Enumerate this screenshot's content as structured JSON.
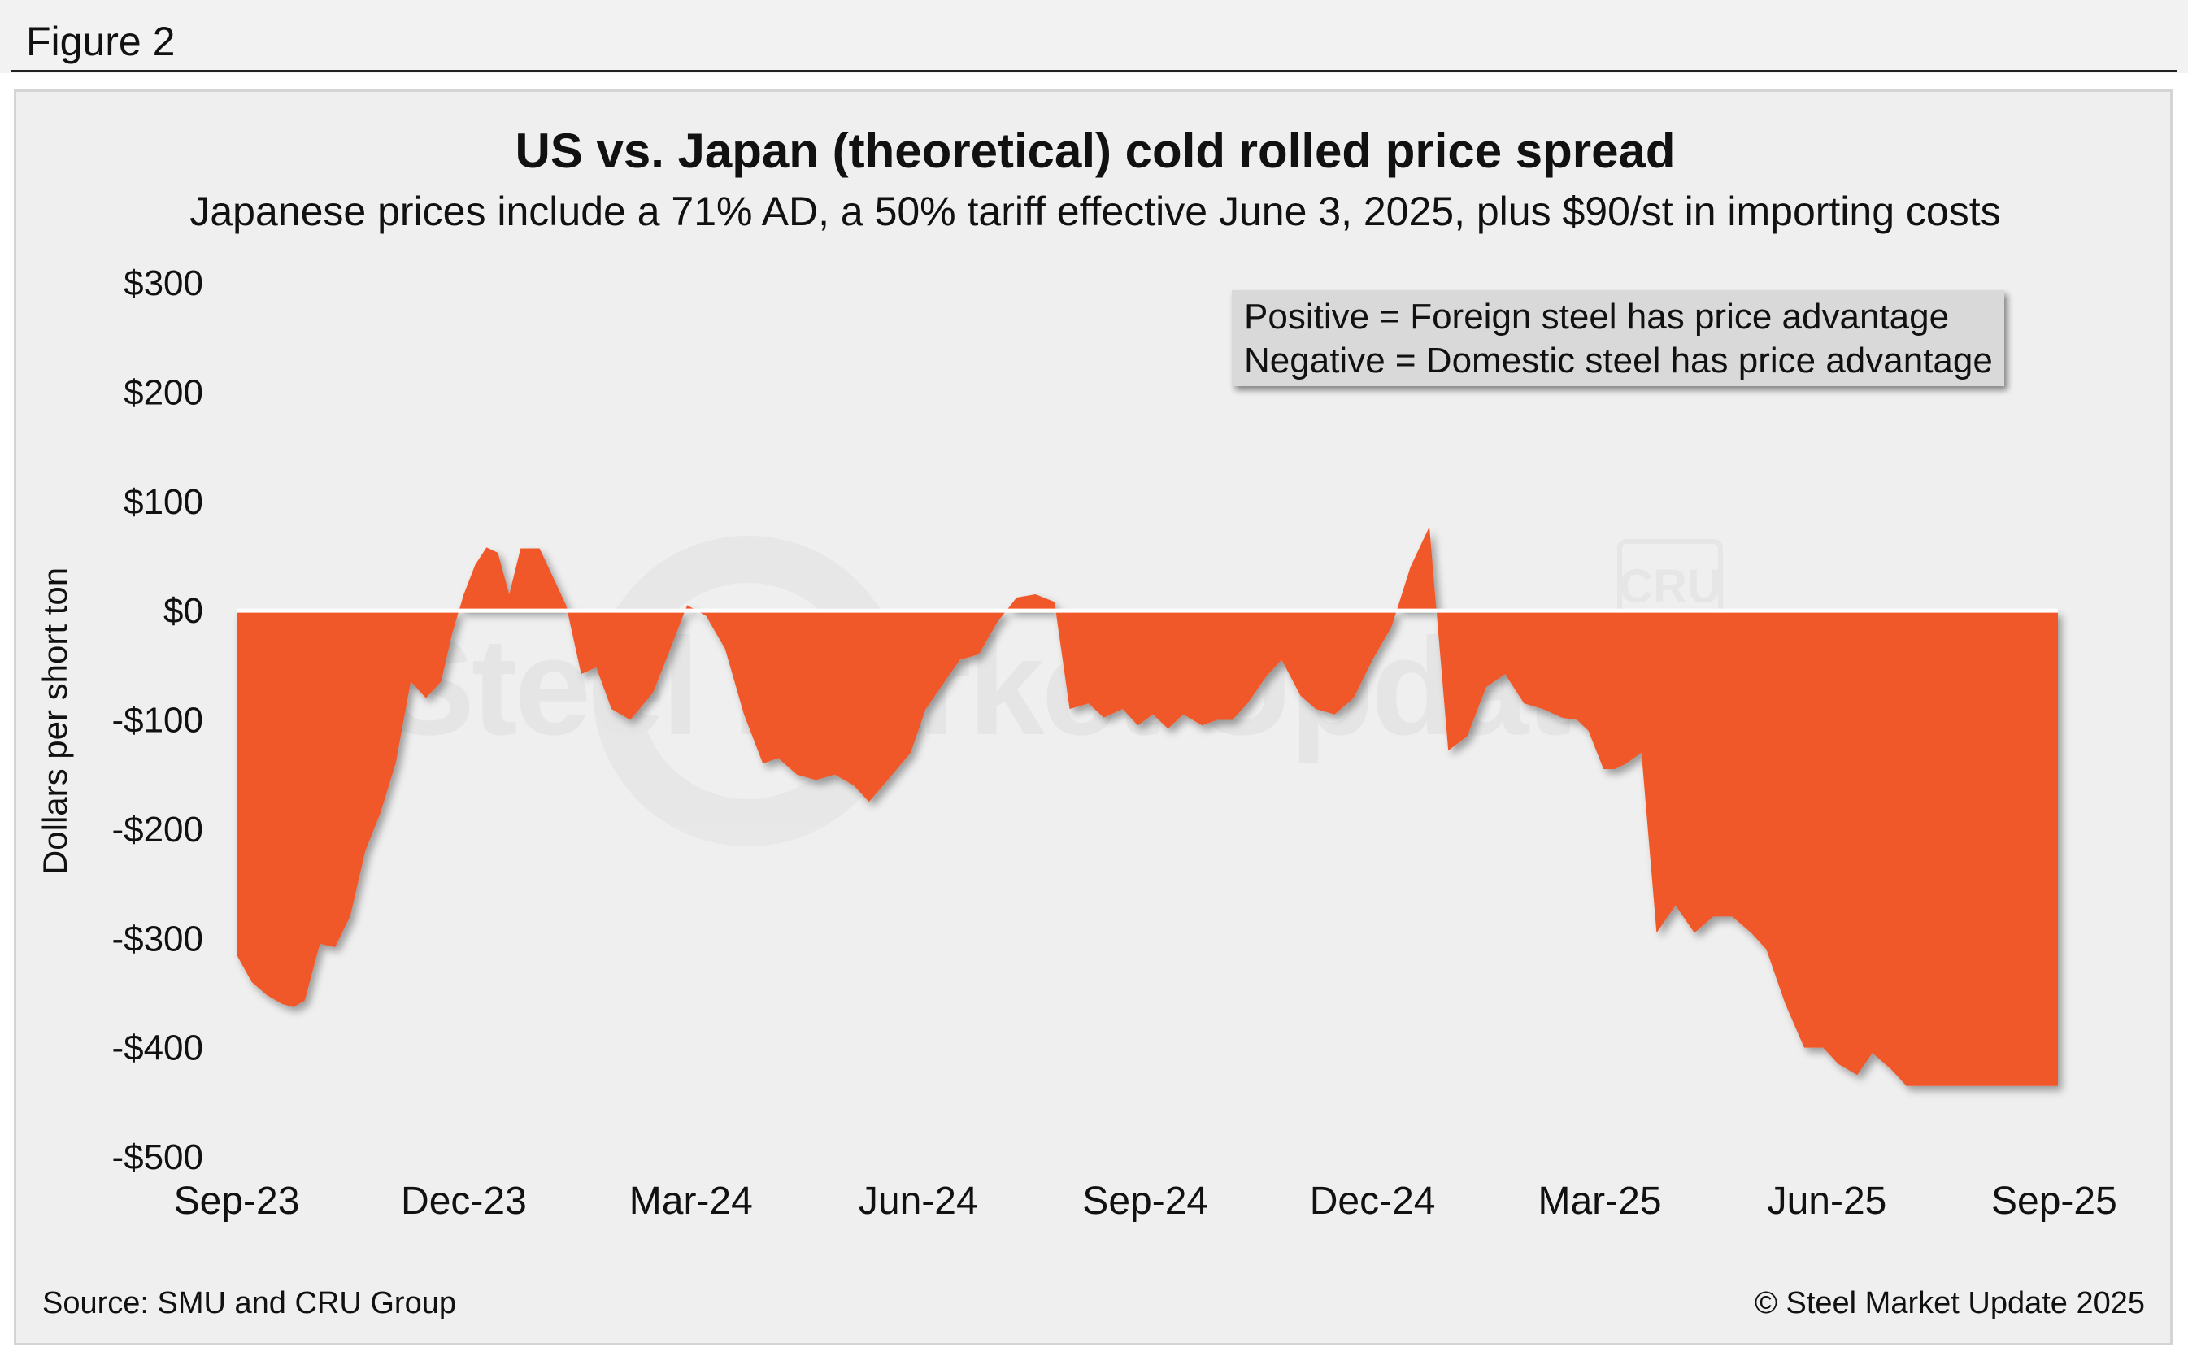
{
  "figure": {
    "label": "Figure 2",
    "source": "Source: SMU and CRU Group",
    "copyright": "© Steel Market Update 2025",
    "watermark_text": "Steel Market Update",
    "watermark_badge": "CRU"
  },
  "colors": {
    "area_fill": "#f0592b",
    "panel_bg": "#efefef",
    "legend_bg": "#d9d9d9",
    "baseline": "#ffffff",
    "text": "#111111"
  },
  "chart_data": {
    "type": "area",
    "title": "US vs. Japan (theoretical) cold rolled price spread",
    "subtitle": "Japanese prices include a 71% AD, a 50% tariff effective June 3, 2025, plus $90/st in importing costs",
    "xlabel": "",
    "ylabel": "Dollars per short ton",
    "ylim": [
      -500,
      300
    ],
    "yticks": [
      300,
      200,
      100,
      0,
      -100,
      -200,
      -300,
      -400,
      -500
    ],
    "ytick_labels": [
      "$300",
      "$200",
      "$100",
      "$0",
      "-$100",
      "-$200",
      "-$300",
      "-$400",
      "-$500"
    ],
    "xlim": [
      0,
      24.2
    ],
    "xticks": [
      0,
      3,
      6,
      9,
      12,
      15,
      18,
      21,
      24
    ],
    "xtick_labels": [
      "Sep-23",
      "Dec-23",
      "Mar-24",
      "Jun-24",
      "Sep-24",
      "Dec-24",
      "Mar-25",
      "Jun-25",
      "Sep-25"
    ],
    "x_unit": "months since Sep-2023",
    "grid": false,
    "legend": {
      "position": "top-right",
      "lines": [
        "Positive = Foreign steel has price advantage",
        "Negative = Domestic steel has price advantage"
      ]
    },
    "series": [
      {
        "name": "US vs. Japan cold rolled price spread ($/st)",
        "x": [
          0,
          0.2,
          0.4,
          0.6,
          0.75,
          0.9,
          1.1,
          1.3,
          1.5,
          1.7,
          1.9,
          2.1,
          2.3,
          2.5,
          2.7,
          2.85,
          3.0,
          3.15,
          3.3,
          3.45,
          3.6,
          3.75,
          4.0,
          4.15,
          4.35,
          4.55,
          4.75,
          4.95,
          5.2,
          5.5,
          5.7,
          5.95,
          6.2,
          6.45,
          6.7,
          6.95,
          7.15,
          7.4,
          7.65,
          7.9,
          8.15,
          8.35,
          8.6,
          8.9,
          9.1,
          9.35,
          9.55,
          9.8,
          10.05,
          10.3,
          10.55,
          10.8,
          11.0,
          11.25,
          11.45,
          11.7,
          11.9,
          12.1,
          12.3,
          12.5,
          12.75,
          12.95,
          13.15,
          13.35,
          13.6,
          13.8,
          14.05,
          14.25,
          14.5,
          14.75,
          15.0,
          15.25,
          15.5,
          15.75,
          16.0,
          16.25,
          16.5,
          16.75,
          17.0,
          17.25,
          17.5,
          17.7,
          17.85,
          18.05,
          18.2,
          18.35,
          18.55,
          18.75,
          19.0,
          19.25,
          19.5,
          19.75,
          20.0,
          20.2,
          20.45,
          20.7,
          20.95,
          21.15,
          21.4,
          21.6,
          21.85,
          22.05,
          22.3,
          22.5,
          22.7,
          22.9,
          23.1,
          23.3,
          23.5,
          23.7,
          23.9,
          24.05
        ],
        "values": [
          -315,
          -340,
          -352,
          -360,
          -363,
          -357,
          -305,
          -308,
          -280,
          -220,
          -185,
          -140,
          -65,
          -80,
          -65,
          -20,
          15,
          42,
          58,
          53,
          15,
          57,
          57,
          35,
          5,
          -58,
          -52,
          -90,
          -100,
          -75,
          -40,
          5,
          -5,
          -35,
          -95,
          -140,
          -135,
          -150,
          -155,
          -150,
          -160,
          -175,
          -155,
          -130,
          -90,
          -65,
          -45,
          -40,
          -10,
          12,
          15,
          8,
          -90,
          -85,
          -98,
          -90,
          -105,
          -95,
          -108,
          -95,
          -105,
          -100,
          -100,
          -85,
          -60,
          -45,
          -78,
          -90,
          -95,
          -80,
          -45,
          -15,
          40,
          77,
          -128,
          -115,
          -70,
          -58,
          -85,
          -90,
          -98,
          -100,
          -110,
          -145,
          -145,
          -140,
          -130,
          -295,
          -270,
          -295,
          -280,
          -280,
          -295,
          -310,
          -360,
          -400,
          -400,
          -415,
          -425,
          -405,
          -420,
          -435,
          -435,
          -435,
          -435,
          -435,
          -435,
          -435,
          -435,
          -435,
          -435,
          -435
        ]
      }
    ]
  }
}
